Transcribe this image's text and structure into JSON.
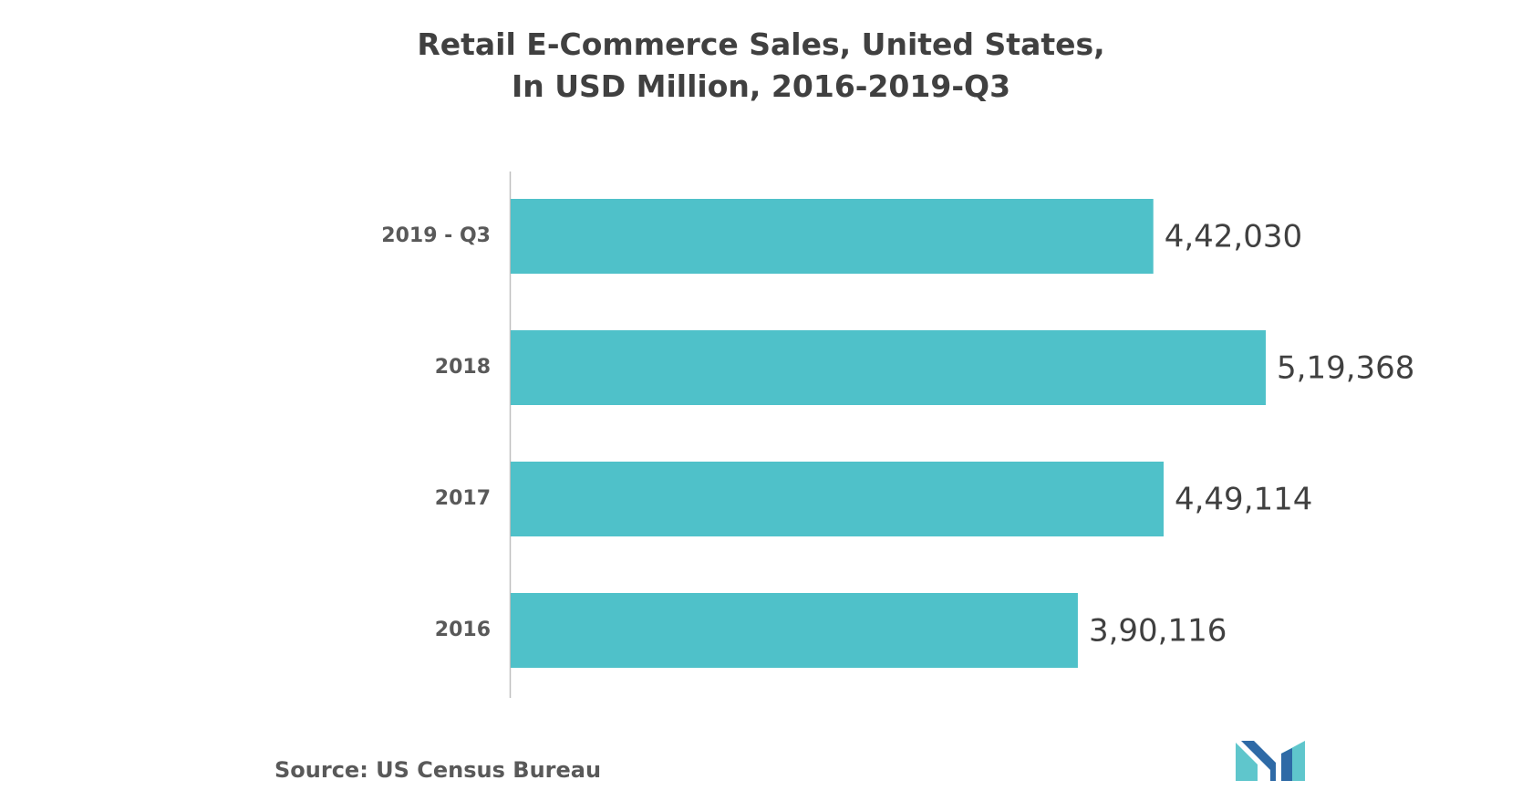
{
  "chart_data": {
    "type": "bar",
    "orientation": "horizontal",
    "title": [
      "Retail E-Commerce Sales, United States,",
      "In USD Million, 2016-2019-Q3"
    ],
    "categories": [
      "2019 - Q3",
      "2018",
      "2017",
      "2016"
    ],
    "values": [
      442030,
      519368,
      449114,
      390116
    ],
    "data_labels": [
      "4,42,030",
      "5,19,368",
      "4,49,114",
      "3,90,116"
    ],
    "xlabel": "",
    "ylabel": "",
    "xlim": [
      0,
      519368
    ],
    "grid": false,
    "legend": "none",
    "bar_color": "#4fc1c9",
    "axis_color": "#bfbfbf"
  },
  "source": "Source: US Census Bureau",
  "logo": {
    "icon": "mordor-intelligence-logo-icon",
    "colors": [
      "#5fc6cc",
      "#2e6aa6"
    ]
  }
}
